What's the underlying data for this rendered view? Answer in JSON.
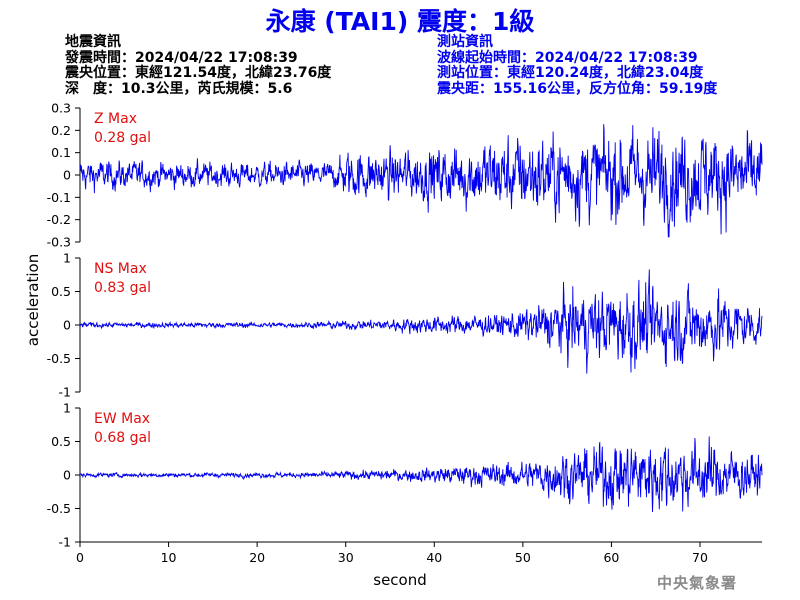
{
  "title": "永康 (TAI1) 震度：1級",
  "earthquake_info": {
    "heading": "地震資訊",
    "origin_time": "發震時間：2024/04/22 17:08:39",
    "epicenter": "震央位置：東經121.54度，北緯23.76度",
    "depth_magnitude": "深　度：10.3公里，芮氏規模：5.6"
  },
  "station_info": {
    "heading": "測站資訊",
    "start_time": "波線起始時間：2024/04/22 17:08:39",
    "location": "測站位置：東經120.24度，北緯23.04度",
    "distance": "震央距：155.16公里，反方位角：59.19度"
  },
  "watermark": "中央氣象署",
  "colors": {
    "trace": "#0000ee",
    "label": "#e01010",
    "title": "#0000ee",
    "axis": "#000000"
  },
  "chart_data": {
    "type": "line",
    "xlabel": "second",
    "ylabel": "acceleration",
    "xlim": [
      0,
      77
    ],
    "x_ticks": [
      0,
      10,
      20,
      30,
      40,
      50,
      60,
      70
    ],
    "x_tick_labels": [
      "0",
      "10",
      "20",
      "30",
      "40",
      "50",
      "60",
      "70"
    ],
    "grid": false,
    "panels": [
      {
        "name": "Z",
        "label": "Z Max",
        "max_label": "0.28 gal",
        "peak": 0.28,
        "ylim": [
          -0.3,
          0.3
        ],
        "y_ticks": [
          -0.3,
          -0.2,
          -0.1,
          0,
          0.1,
          0.2,
          0.3
        ],
        "y_tick_labels": [
          "-0.3",
          "-0.2",
          "-0.1",
          "0",
          "0.1",
          "0.2",
          "0.3"
        ],
        "envelope": [
          [
            0,
            0.07
          ],
          [
            10,
            0.06
          ],
          [
            20,
            0.055
          ],
          [
            29,
            0.06
          ],
          [
            30,
            0.11
          ],
          [
            35,
            0.11
          ],
          [
            40,
            0.13
          ],
          [
            50,
            0.18
          ],
          [
            60,
            0.2
          ],
          [
            66,
            0.22
          ],
          [
            70,
            0.21
          ],
          [
            77,
            0.18
          ]
        ]
      },
      {
        "name": "NS",
        "label": "NS Max",
        "max_label": "0.83 gal",
        "peak": 0.83,
        "ylim": [
          -1,
          1
        ],
        "y_ticks": [
          -1,
          -0.5,
          0,
          0.5,
          1
        ],
        "y_tick_labels": [
          "-1",
          "-0.5",
          "0",
          "0.5",
          "1"
        ],
        "envelope": [
          [
            0,
            0.04
          ],
          [
            25,
            0.04
          ],
          [
            33,
            0.08
          ],
          [
            40,
            0.14
          ],
          [
            47,
            0.16
          ],
          [
            52,
            0.3
          ],
          [
            55,
            0.5
          ],
          [
            62,
            0.62
          ],
          [
            66,
            0.6
          ],
          [
            72,
            0.5
          ],
          [
            77,
            0.3
          ]
        ]
      },
      {
        "name": "EW",
        "label": "EW Max",
        "max_label": "0.68 gal",
        "peak": 0.68,
        "ylim": [
          -1,
          1
        ],
        "y_ticks": [
          -1,
          -0.5,
          0,
          0.5,
          1
        ],
        "y_tick_labels": [
          "-1",
          "-0.5",
          "0",
          "0.5",
          "1"
        ],
        "envelope": [
          [
            0,
            0.03
          ],
          [
            25,
            0.04
          ],
          [
            35,
            0.08
          ],
          [
            42,
            0.14
          ],
          [
            50,
            0.2
          ],
          [
            54,
            0.35
          ],
          [
            60,
            0.5
          ],
          [
            66,
            0.55
          ],
          [
            72,
            0.45
          ],
          [
            77,
            0.3
          ]
        ]
      }
    ]
  }
}
